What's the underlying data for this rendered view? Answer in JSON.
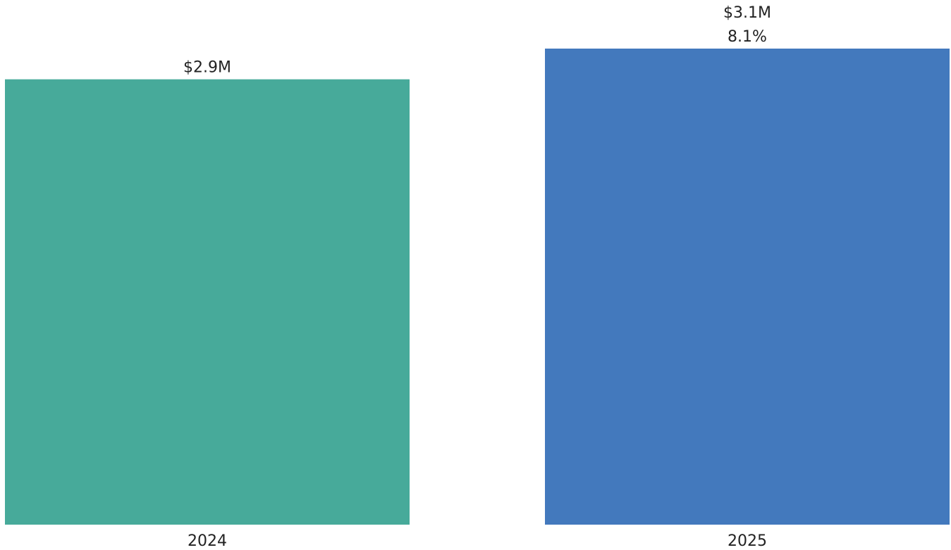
{
  "chart_data": {
    "type": "bar",
    "categories": [
      "2024",
      "2025"
    ],
    "values": [
      2.9,
      3.1
    ],
    "value_labels": [
      "$2.9M",
      "$3.1M"
    ],
    "change_labels": [
      "",
      "8.1%"
    ],
    "colors": [
      "#47aa9a",
      "#4379bd"
    ],
    "title": "",
    "xlabel": "",
    "ylabel": "",
    "ylim": [
      0,
      3.1
    ],
    "grid": false,
    "legend": "none"
  }
}
